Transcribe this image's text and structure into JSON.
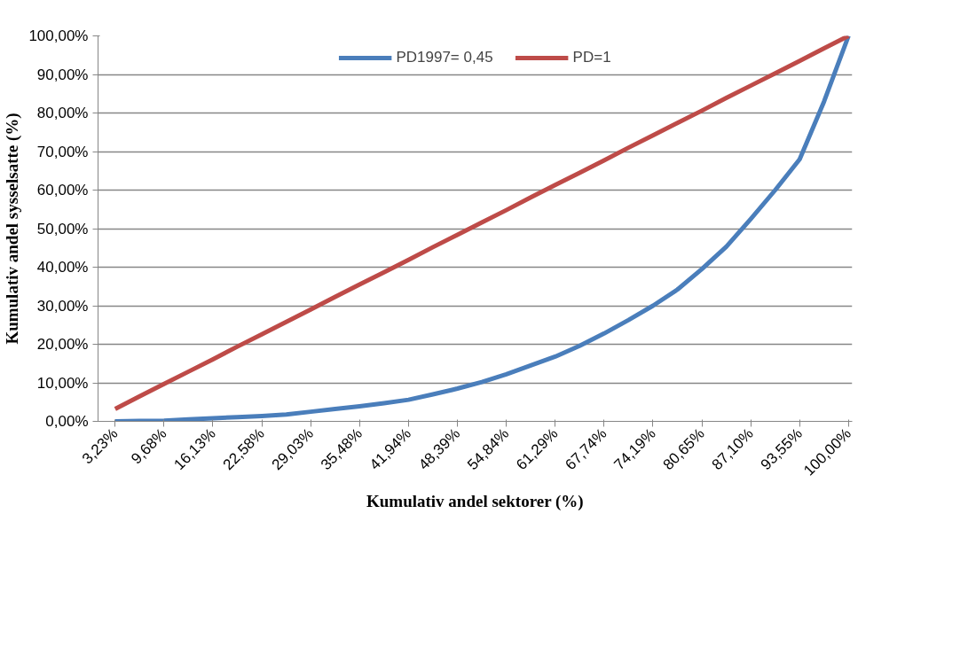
{
  "chart_data": {
    "type": "line",
    "xlabel": "Kumulativ andel sektorer (%)",
    "ylabel": "Kumulativ andel sysselsatte (%)",
    "categories": [
      "3,23%",
      null,
      "9,68%",
      null,
      "16,13%",
      null,
      "22,58%",
      null,
      "29,03%",
      null,
      "35,48%",
      null,
      "41,94%",
      null,
      "48,39%",
      null,
      "54,84%",
      null,
      "61,29%",
      null,
      "67,74%",
      null,
      "74,19%",
      null,
      "80,65%",
      null,
      "87,10%",
      null,
      "93,55%",
      null,
      "100,00%"
    ],
    "series": [
      {
        "name": "PD1997= 0,45",
        "color": "#4a7ebb",
        "values": [
          0,
          0.1,
          0.2,
          0.5,
          0.8,
          1.1,
          1.4,
          1.8,
          2.5,
          3.2,
          3.9,
          4.7,
          5.6,
          7.0,
          8.5,
          10.2,
          12.2,
          14.5,
          16.8,
          19.6,
          22.8,
          26.3,
          30.0,
          34.2,
          39.5,
          45.3,
          52.5,
          60.0,
          68.0,
          83.0,
          100.0
        ]
      },
      {
        "name": "PD=1",
        "color": "#be4b48",
        "values": [
          3.2,
          6.5,
          9.7,
          12.9,
          16.1,
          19.4,
          22.6,
          25.8,
          29.0,
          32.3,
          35.5,
          38.7,
          41.9,
          45.2,
          48.4,
          51.6,
          54.8,
          58.1,
          61.3,
          64.5,
          67.7,
          71.0,
          74.2,
          77.4,
          80.6,
          83.9,
          87.1,
          90.3,
          93.5,
          96.8,
          100.0
        ]
      }
    ],
    "ylim": [
      0,
      100
    ],
    "yticks": [
      {
        "value": 0,
        "label": "0,00%"
      },
      {
        "value": 10,
        "label": "10,00%"
      },
      {
        "value": 20,
        "label": "20,00%"
      },
      {
        "value": 30,
        "label": "30,00%"
      },
      {
        "value": 40,
        "label": "40,00%"
      },
      {
        "value": 50,
        "label": "50,00%"
      },
      {
        "value": 60,
        "label": "60,00%"
      },
      {
        "value": 70,
        "label": "70,00%"
      },
      {
        "value": 80,
        "label": "80,00%"
      },
      {
        "value": 90,
        "label": "90,00%"
      },
      {
        "value": 100,
        "label": "100,00%"
      }
    ],
    "grid": "y",
    "legend": "top",
    "marker": "none",
    "line_style": "solid"
  }
}
